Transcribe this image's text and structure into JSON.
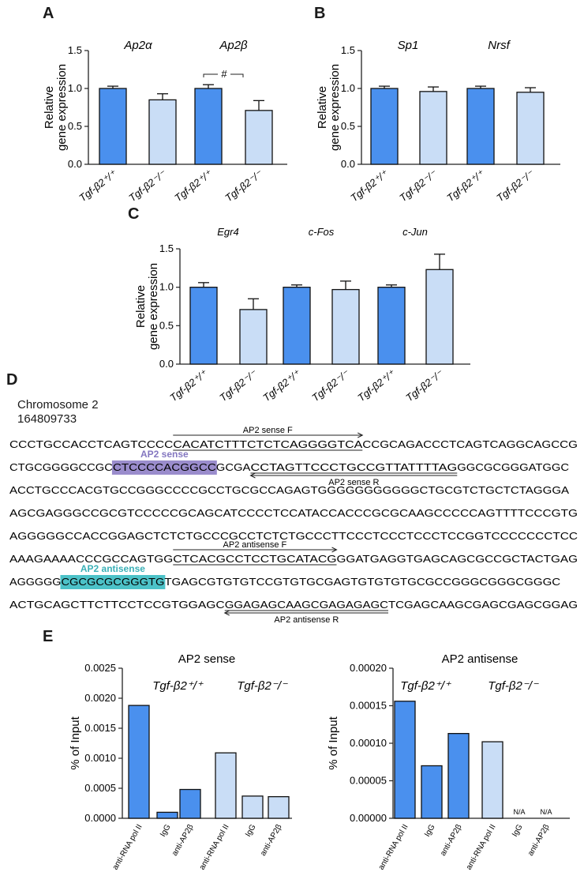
{
  "colors": {
    "wt": "#4a90ee",
    "ko": "#c9ddf6",
    "sense_hl": "#9a8ccc",
    "antisense_hl": "#4cc2c8",
    "sense_label": "#8477c0",
    "antisense_label": "#3ab0b7"
  },
  "panels": {
    "A": "A",
    "B": "B",
    "C": "C",
    "D": "D",
    "E": "E"
  },
  "genotypes": {
    "wt": "Tgf-β2⁺/⁺",
    "ko": "Tgf-β2⁻/⁻"
  },
  "chart_data": [
    {
      "id": "A",
      "type": "bar",
      "ylabel": [
        "Relative",
        "gene expression"
      ],
      "ylim": [
        0,
        1.5
      ],
      "yticks": [
        "0.0",
        "0.5",
        "1.0",
        "1.5"
      ],
      "groups": [
        "Ap2α",
        "Ap2β"
      ],
      "categories": [
        "Tgf-β2⁺/⁺",
        "Tgf-β2⁻/⁻",
        "Tgf-β2⁺/⁺",
        "Tgf-β2⁻/⁻"
      ],
      "values": [
        1.0,
        0.85,
        1.0,
        0.71
      ],
      "errors": [
        0.03,
        0.08,
        0.05,
        0.13
      ],
      "annotation": "#"
    },
    {
      "id": "B",
      "type": "bar",
      "ylabel": [
        "Relative",
        "gene expression"
      ],
      "ylim": [
        0,
        1.5
      ],
      "yticks": [
        "0.0",
        "0.5",
        "1.0",
        "1.5"
      ],
      "groups": [
        "Sp1",
        "Nrsf"
      ],
      "categories": [
        "Tgf-β2⁺/⁺",
        "Tgf-β2⁻/⁻",
        "Tgf-β2⁺/⁺",
        "Tgf-β2⁻/⁻"
      ],
      "values": [
        1.0,
        0.96,
        1.0,
        0.95
      ],
      "errors": [
        0.03,
        0.06,
        0.03,
        0.06
      ]
    },
    {
      "id": "C",
      "type": "bar",
      "ylabel": [
        "Relative",
        "gene expression"
      ],
      "ylim": [
        0,
        1.5
      ],
      "yticks": [
        "0.0",
        "0.5",
        "1.0",
        "1.5"
      ],
      "groups": [
        "Egr4",
        "c-Fos",
        "c-Jun"
      ],
      "categories": [
        "Tgf-β2⁺/⁺",
        "Tgf-β2⁻/⁻",
        "Tgf-β2⁺/⁺",
        "Tgf-β2⁻/⁻",
        "Tgf-β2⁺/⁺",
        "Tgf-β2⁻/⁻"
      ],
      "values": [
        1.0,
        0.71,
        1.0,
        0.97,
        1.0,
        1.23
      ],
      "errors": [
        0.06,
        0.14,
        0.03,
        0.11,
        0.03,
        0.2
      ]
    },
    {
      "id": "E1",
      "type": "bar",
      "title": "AP2 sense",
      "ylabel": [
        "% of Input"
      ],
      "ylim": [
        0,
        0.0025
      ],
      "yticks": [
        "0.0000",
        "0.0005",
        "0.0010",
        "0.0015",
        "0.0020",
        "0.0025"
      ],
      "genotype_headers": [
        "Tgf-β2⁺/⁺",
        "Tgf-β2⁻/⁻"
      ],
      "categories": [
        "anti-RNA pol II",
        "IgG",
        "anti-AP2β",
        "anti-RNA pol II",
        "IgG",
        "anti-AP2β"
      ],
      "values": [
        0.00188,
        0.0001,
        0.00048,
        0.00109,
        0.00037,
        0.00036
      ],
      "na_labels": [
        "",
        "",
        "",
        "",
        "",
        ""
      ]
    },
    {
      "id": "E2",
      "type": "bar",
      "title": "AP2 antisense",
      "ylabel": [
        "% of Input"
      ],
      "ylim": [
        0,
        0.0002
      ],
      "yticks": [
        "0.00000",
        "0.00005",
        "0.00010",
        "0.00015",
        "0.00020"
      ],
      "genotype_headers": [
        "Tgf-β2⁺/⁺",
        "Tgf-β2⁻/⁻"
      ],
      "categories": [
        "anti-RNA pol II",
        "IgG",
        "anti-AP2β",
        "anti-RNA pol II",
        "IgG",
        "anti-AP2β"
      ],
      "values": [
        0.000156,
        7e-05,
        0.000113,
        0.000102,
        null,
        null
      ],
      "na_labels": [
        "",
        "",
        "",
        "",
        "N/A",
        "N/A"
      ]
    }
  ],
  "sequence": {
    "header_line1": "Chromosome 2",
    "header_line2": "164809733",
    "lines": [
      {
        "segments": [
          "CCCTGCCACCTCAGTCCCC",
          "CACATCTTTCTCTCAGGGGTCA",
          "CCGCAGACCCTCAGTCAGGCAGCCG"
        ]
      },
      {
        "segments": [
          "CTGCGGGGCCGC",
          "CTCCCCACGGCC",
          "GCGA",
          "CCTAGTTCCCTGCCGTTATTTTAG",
          "GGCGCGGGATGGC"
        ]
      },
      {
        "segments": [
          "ACCTGCCCACGTGCCGGGCCCCGCCTGCGCCAGAGTGGGGGGGGGGGCTGCGTCTGCTCTAGGGA"
        ]
      },
      {
        "segments": [
          "AGCGAGGGCCGCGTCCCCCGCAGCATCCCCTCCATACCACCCGCGCAAGCCCCCAGTTTTCCCGTG"
        ]
      },
      {
        "segments": [
          "AGGGGGCCACCGGAGCTCTCTGCCCGCCTCTCTGCCCTTCCCTCCCTCCCTCCGGTCCCCCCCTCC"
        ]
      },
      {
        "segments": [
          "AAAGAAAACCCGCCAGTGG",
          "CTCACGCCTCCTGCATACG",
          "GGATGAGGTGAGCAGCGCCGCTACTGAG"
        ]
      },
      {
        "segments": [
          "AGGGGG",
          "CGCGCGCGGGTG",
          "TGAGCGTGTGTCCGTGTGCGAGTGTGTGTGCGCCGGGCGGGCGGGC"
        ]
      },
      {
        "segments": [
          "ACTGCAGCTTCTTCCTCCGTGGAGC",
          "GGAGAGCAAGCGAGAGAGC",
          "TCGAGCAAGCGAGCGAGCGGAG"
        ]
      }
    ],
    "primer_labels": {
      "sense_f": "AP2 sense F",
      "sense_r": "AP2 sense R",
      "antisense_f": "AP2 antisense F",
      "antisense_r": "AP2 antisense R"
    },
    "site_labels": {
      "sense": "AP2 sense",
      "antisense": "AP2 antisense"
    }
  }
}
